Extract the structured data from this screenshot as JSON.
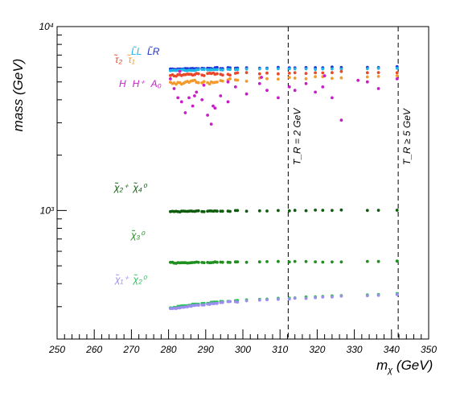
{
  "chart_data": {
    "type": "scatter",
    "title": "",
    "xlabel": "m_χ (GeV)",
    "ylabel": "mass  (GeV)",
    "xlim": [
      250,
      350
    ],
    "ylim": [
      200,
      10000
    ],
    "yscale": "log",
    "x_ticks": [
      "250",
      "260",
      "270",
      "280",
      "290",
      "300",
      "310",
      "320",
      "330",
      "340",
      "350"
    ],
    "y_ticks": [
      {
        "value": 1000,
        "label": "10³"
      },
      {
        "value": 10000,
        "label": "10⁴"
      }
    ],
    "grid": false,
    "legend": [
      {
        "label": "τ̃₂  τ̃₁",
        "colors": [
          "#e8492c",
          "#f39a2a"
        ]
      },
      {
        "label": "L̃_L",
        "colors": [
          "#1eb4e6"
        ]
      },
      {
        "label": "L̃_R",
        "colors": [
          "#1a2fd6"
        ]
      },
      {
        "label": "H  H⁺  A₀",
        "colors": [
          "#c81ec8"
        ]
      },
      {
        "label": "χ̃₂⁺  χ̃₄⁰",
        "colors": [
          "#0c5c0c"
        ]
      },
      {
        "label": "χ̃₃⁰",
        "colors": [
          "#1f8f1f"
        ]
      },
      {
        "label": "χ̃₁⁺  χ̃₂⁰",
        "colors": [
          "#9a8ef0",
          "#2bbf5a"
        ]
      }
    ],
    "annotations": [
      {
        "text": "T_R = 2 GeV",
        "x": 312.2
      },
      {
        "text": "T_R ≥ 5 GeV",
        "x": 341.8
      }
    ],
    "vlines": [
      312.2,
      341.8
    ],
    "mass_grid": [
      280.5,
      281.5,
      282.5,
      283.5,
      284.5,
      285.5,
      286.5,
      287.5,
      289,
      290.5,
      291.5,
      292.5,
      294,
      296,
      298,
      301,
      304.5,
      306.5,
      309.5,
      312.5,
      314,
      317,
      319.5,
      321.5,
      324,
      326.5,
      333.5,
      336.5,
      341.5
    ],
    "series": [
      {
        "name": "L̃_R",
        "color": "#1a2fd6",
        "y_range": [
          5880,
          6020
        ],
        "jitter": 70
      },
      {
        "name": "L̃_L",
        "color": "#1eb4e6",
        "y_range": [
          5780,
          5920
        ],
        "jitter": 70
      },
      {
        "name": "τ̃₂",
        "color": "#e8492c",
        "y_range": [
          5450,
          5680
        ],
        "jitter": 140
      },
      {
        "name": "τ̃₁",
        "color": "#f39a2a",
        "y_range": [
          4950,
          5300
        ],
        "jitter": 250
      },
      {
        "name": "H H⁺ A₀",
        "color": "#c81ec8",
        "y_range": [
          2950,
          5600
        ],
        "jitter": 0
      },
      {
        "name": "χ̃₂⁺ χ̃₄⁰",
        "color": "#0c5c0c",
        "y_range": [
          985,
          1005
        ],
        "jitter": 10
      },
      {
        "name": "χ̃₃⁰",
        "color": "#1f8f1f",
        "y_range": [
          520,
          528
        ],
        "jitter": 6
      },
      {
        "name": "χ̃₂⁰",
        "color": "#2bbf5a",
        "y_range": [
          296,
          352
        ],
        "jitter": 3
      },
      {
        "name": "χ̃₁⁺",
        "color": "#9a8ef0",
        "y_range": [
          292,
          348
        ],
        "jitter": 3
      }
    ]
  }
}
